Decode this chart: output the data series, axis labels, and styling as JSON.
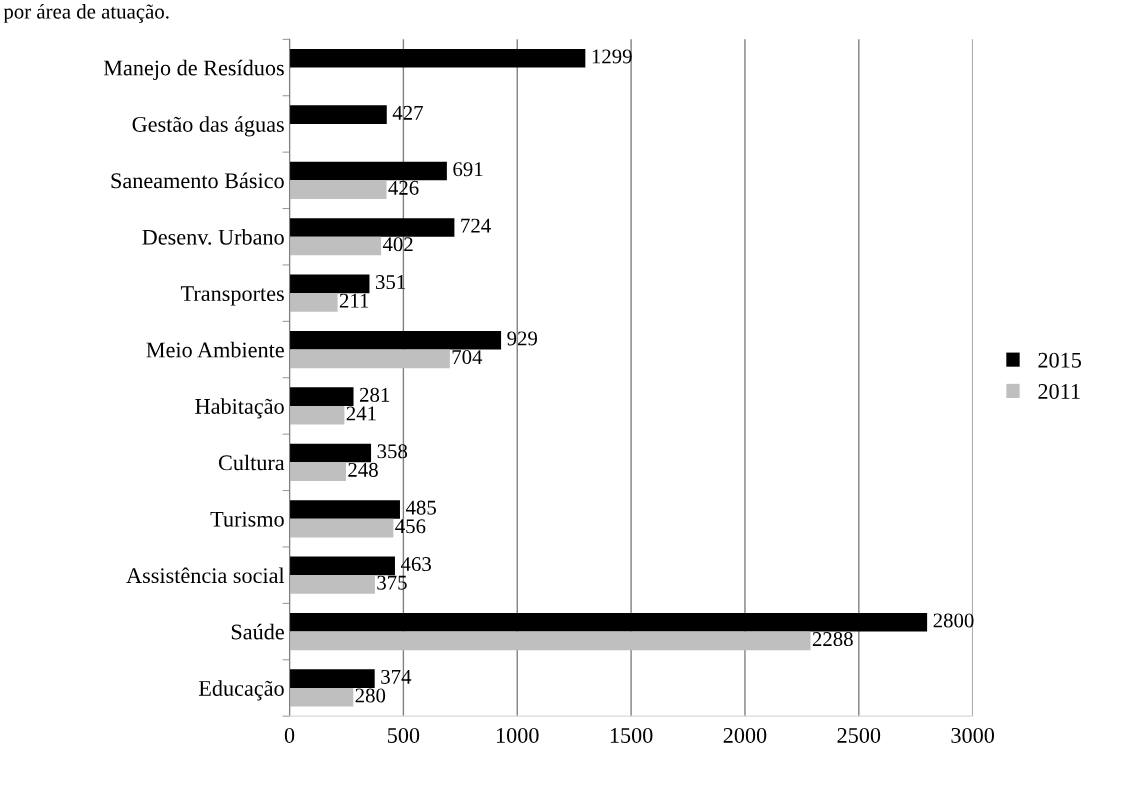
{
  "chart_data": {
    "type": "bar",
    "orientation": "horizontal",
    "annotations": [
      "por área de atuação."
    ],
    "categories": [
      "Manejo de Resíduos",
      "Gestão das águas",
      "Saneamento Básico",
      "Desenv. Urbano",
      "Transportes",
      "Meio Ambiente",
      "Habitação",
      "Cultura",
      "Turismo",
      "Assistência social",
      "Saúde",
      "Educação"
    ],
    "series": [
      {
        "name": "2015",
        "color": "#000000",
        "values": [
          1299,
          427,
          691,
          724,
          351,
          929,
          281,
          358,
          485,
          463,
          2800,
          374
        ]
      },
      {
        "name": "2011",
        "color": "#bfbfbf",
        "values": [
          null,
          null,
          426,
          402,
          211,
          704,
          241,
          248,
          456,
          375,
          2288,
          280
        ]
      }
    ],
    "xlim": [
      0,
      3000
    ],
    "xticks": [
      0,
      500,
      1000,
      1500,
      2000,
      2500,
      3000
    ],
    "grid": "x",
    "legend": "right",
    "data_labels": true
  }
}
